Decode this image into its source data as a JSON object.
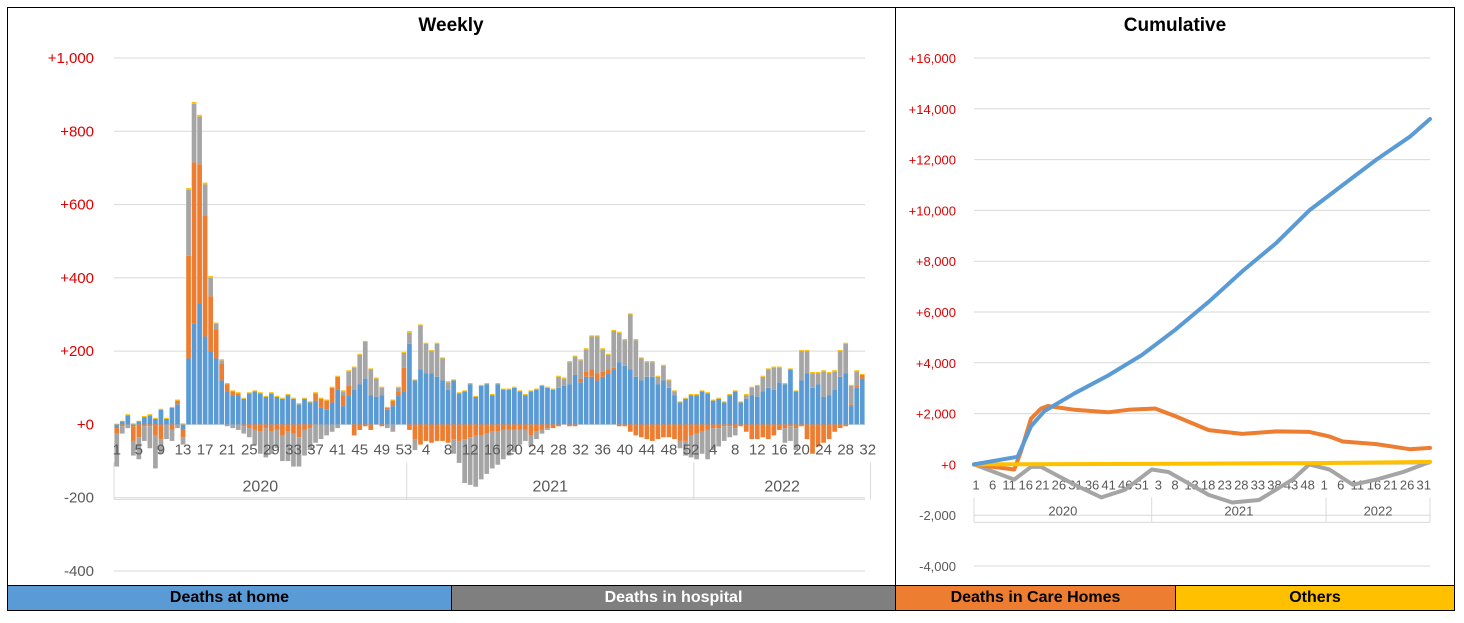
{
  "colors": {
    "home": "#5b9bd5",
    "hospital": "#a5a5a5",
    "care_homes": "#ed7d31",
    "others": "#ffc000",
    "tick_red": "#e00000",
    "grid": "#d9d9d9"
  },
  "legend": [
    {
      "label": "Deaths at home",
      "color": "#5b9bd5",
      "text_color": "#000000"
    },
    {
      "label": "Deaths in hospital",
      "color": "#7f7f7f",
      "text_color": "#ffffff"
    },
    {
      "label": "Deaths in Care Homes",
      "color": "#ed7d31",
      "text_color": "#000000"
    },
    {
      "label": "Others",
      "color": "#ffc000",
      "text_color": "#000000"
    }
  ],
  "chart_data": [
    {
      "type": "bar",
      "stacked": true,
      "title": "Weekly",
      "ylim": [
        -400,
        1000
      ],
      "yticks": [
        {
          "value": 1000,
          "label": "+1,000",
          "red": true
        },
        {
          "value": 800,
          "label": "+800",
          "red": true
        },
        {
          "value": 600,
          "label": "+600",
          "red": true
        },
        {
          "value": 400,
          "label": "+400",
          "red": true
        },
        {
          "value": 200,
          "label": "+200",
          "red": true
        },
        {
          "value": 0,
          "label": "+0",
          "red": true
        },
        {
          "value": -200,
          "label": "-200",
          "red": false
        },
        {
          "value": -400,
          "label": "-400",
          "red": false
        }
      ],
      "x_tick_labels": [
        "1",
        "5",
        "9",
        "13",
        "17",
        "21",
        "25",
        "29",
        "33",
        "37",
        "41",
        "45",
        "49",
        "53",
        "4",
        "8",
        "12",
        "16",
        "20",
        "24",
        "28",
        "32",
        "36",
        "40",
        "44",
        "48",
        "52",
        "4",
        "8",
        "12",
        "16",
        "20",
        "24",
        "28",
        "32"
      ],
      "years": [
        {
          "label": "2020",
          "weeks": 53
        },
        {
          "label": "2021",
          "weeks": 52
        },
        {
          "label": "2022",
          "weeks": 32
        }
      ],
      "series_names": [
        "Deaths at home",
        "Deaths in hospital",
        "Deaths in Care Homes",
        "Others"
      ],
      "home": [
        -10,
        8,
        25,
        -5,
        8,
        20,
        25,
        15,
        40,
        15,
        45,
        55,
        -15,
        180,
        275,
        330,
        240,
        200,
        180,
        120,
        90,
        80,
        80,
        70,
        85,
        90,
        85,
        75,
        85,
        75,
        70,
        80,
        70,
        55,
        70,
        60,
        65,
        45,
        40,
        60,
        95,
        50,
        80,
        95,
        110,
        125,
        80,
        75,
        80,
        40,
        50,
        80,
        90,
        220,
        120,
        150,
        140,
        140,
        130,
        120,
        95,
        120,
        85,
        90,
        110,
        75,
        105,
        110,
        80,
        110,
        95,
        95,
        100,
        90,
        80,
        90,
        95,
        105,
        100,
        95,
        100,
        105,
        110,
        135,
        115,
        130,
        130,
        120,
        130,
        140,
        150,
        170,
        160,
        150,
        130,
        120,
        130,
        130,
        110,
        120,
        100,
        80,
        60,
        70,
        80,
        80,
        90,
        85,
        65,
        70,
        60,
        80,
        90,
        60,
        70,
        80,
        75,
        90,
        100,
        95,
        115,
        110,
        150,
        90,
        120,
        140,
        100,
        110,
        75,
        80,
        95,
        130,
        140,
        50,
        100,
        125
      ],
      "care": [
        -15,
        -5,
        0,
        -40,
        -35,
        -5,
        -5,
        -30,
        -40,
        0,
        -15,
        10,
        -20,
        280,
        440,
        380,
        330,
        150,
        80,
        45,
        20,
        10,
        5,
        -5,
        -10,
        -15,
        -20,
        -10,
        -20,
        -15,
        -30,
        -20,
        -25,
        -35,
        -15,
        -10,
        20,
        25,
        25,
        40,
        35,
        30,
        25,
        -30,
        -15,
        -5,
        -15,
        0,
        -5,
        5,
        15,
        10,
        65,
        -15,
        -40,
        -55,
        -45,
        -50,
        -45,
        -45,
        -50,
        -40,
        -45,
        -40,
        -35,
        -30,
        -30,
        -25,
        -20,
        -20,
        -15,
        -15,
        -15,
        -15,
        -15,
        -30,
        -20,
        -15,
        -10,
        -10,
        -5,
        0,
        -5,
        -5,
        10,
        15,
        20,
        20,
        15,
        10,
        5,
        -5,
        -5,
        -20,
        -30,
        -35,
        -40,
        -45,
        -40,
        -35,
        -35,
        -40,
        -45,
        -45,
        -30,
        -25,
        -20,
        -15,
        -10,
        -10,
        -5,
        -5,
        -10,
        -5,
        -20,
        -40,
        -40,
        -35,
        -40,
        -30,
        -15,
        -10,
        -5,
        -10,
        -5,
        -40,
        -80,
        -60,
        -50,
        -40,
        -20,
        -10,
        -5,
        5,
        5,
        10,
        -5
      ],
      "hospital": [
        -90,
        -20,
        -10,
        -40,
        -60,
        -40,
        -60,
        -90,
        -40,
        -40,
        -30,
        -10,
        -20,
        180,
        160,
        130,
        85,
        50,
        15,
        10,
        -5,
        -10,
        -15,
        -20,
        -25,
        -40,
        -60,
        -80,
        -60,
        -50,
        -70,
        -80,
        -90,
        -80,
        -70,
        -60,
        -50,
        -40,
        -30,
        -20,
        -10,
        10,
        40,
        60,
        80,
        100,
        70,
        50,
        20,
        -10,
        -20,
        10,
        40,
        30,
        -30,
        120,
        80,
        60,
        90,
        60,
        20,
        -40,
        -60,
        -120,
        -130,
        -140,
        -120,
        -110,
        -100,
        -90,
        -80,
        -70,
        -60,
        -40,
        -30,
        -30,
        -20,
        -10,
        -5,
        0,
        30,
        20,
        60,
        50,
        50,
        60,
        90,
        100,
        60,
        40,
        100,
        80,
        70,
        150,
        100,
        60,
        40,
        40,
        20,
        40,
        20,
        10,
        -20,
        -40,
        -60,
        -70,
        -60,
        -80,
        -60,
        -50,
        -40,
        -30,
        -20,
        0,
        10,
        20,
        30,
        40,
        50,
        60,
        40,
        -40,
        -40,
        -60,
        80,
        60,
        40,
        30,
        70,
        60,
        50,
        70,
        80,
        50,
        40
      ],
      "others": [
        2,
        2,
        3,
        3,
        2,
        3,
        3,
        3,
        3,
        3,
        3,
        3,
        3,
        5,
        5,
        5,
        5,
        5,
        3,
        3,
        3,
        3,
        3,
        3,
        3,
        3,
        3,
        3,
        3,
        3,
        3,
        3,
        3,
        3,
        3,
        3,
        3,
        3,
        3,
        3,
        3,
        3,
        3,
        3,
        3,
        3,
        3,
        3,
        3,
        3,
        3,
        3,
        3,
        5,
        3,
        3,
        3,
        3,
        3,
        3,
        3,
        3,
        3,
        3,
        3,
        3,
        3,
        3,
        3,
        3,
        3,
        3,
        3,
        3,
        3,
        3,
        3,
        3,
        3,
        3,
        3,
        3,
        3,
        3,
        3,
        3,
        3,
        3,
        3,
        3,
        3,
        3,
        3,
        3,
        3,
        3,
        3,
        3,
        3,
        3,
        3,
        3,
        3,
        3,
        3,
        3,
        3,
        3,
        3,
        3,
        3,
        3,
        3,
        3,
        3,
        3,
        3,
        3,
        3,
        3,
        3,
        3,
        3,
        3,
        3,
        3,
        3,
        3,
        3,
        3,
        3,
        3,
        3,
        3,
        3,
        3,
        3
      ]
    },
    {
      "type": "line",
      "title": "Cumulative",
      "ylim": [
        -4000,
        16000
      ],
      "yticks": [
        {
          "value": 16000,
          "label": "+16,000",
          "red": true
        },
        {
          "value": 14000,
          "label": "+14,000",
          "red": true
        },
        {
          "value": 12000,
          "label": "+12,000",
          "red": true
        },
        {
          "value": 10000,
          "label": "+10,000",
          "red": true
        },
        {
          "value": 8000,
          "label": "+8,000",
          "red": true
        },
        {
          "value": 6000,
          "label": "+6,000",
          "red": true
        },
        {
          "value": 4000,
          "label": "+4,000",
          "red": true
        },
        {
          "value": 2000,
          "label": "+2,000",
          "red": true
        },
        {
          "value": 0,
          "label": "+0",
          "red": true
        },
        {
          "value": -2000,
          "label": "-2,000",
          "red": false
        },
        {
          "value": -4000,
          "label": "-4,000",
          "red": false
        }
      ],
      "x_tick_labels": [
        "1",
        "6",
        "11",
        "16",
        "21",
        "26",
        "31",
        "36",
        "41",
        "46",
        "51",
        "3",
        "8",
        "13",
        "18",
        "23",
        "28",
        "33",
        "38",
        "43",
        "48",
        "1",
        "6",
        "11",
        "16",
        "21",
        "26",
        "31"
      ],
      "years": [
        {
          "label": "2020",
          "weeks": 53
        },
        {
          "label": "2021",
          "weeks": 52
        },
        {
          "label": "2022",
          "weeks": 32
        }
      ],
      "series": [
        {
          "name": "Deaths at home",
          "points": [
            [
              0,
              0
            ],
            [
              13,
              300
            ],
            [
              17,
              1500
            ],
            [
              21,
              2100
            ],
            [
              30,
              2800
            ],
            [
              40,
              3500
            ],
            [
              50,
              4300
            ],
            [
              53,
              4600
            ],
            [
              60,
              5300
            ],
            [
              70,
              6400
            ],
            [
              80,
              7600
            ],
            [
              90,
              8700
            ],
            [
              100,
              10000
            ],
            [
              110,
              11000
            ],
            [
              120,
              12000
            ],
            [
              130,
              12900
            ],
            [
              136,
              13600
            ]
          ]
        },
        {
          "name": "Deaths in Care Homes",
          "points": [
            [
              0,
              0
            ],
            [
              12,
              -200
            ],
            [
              14,
              500
            ],
            [
              17,
              1800
            ],
            [
              20,
              2200
            ],
            [
              22,
              2300
            ],
            [
              30,
              2150
            ],
            [
              40,
              2050
            ],
            [
              46,
              2150
            ],
            [
              54,
              2200
            ],
            [
              60,
              1900
            ],
            [
              70,
              1350
            ],
            [
              80,
              1200
            ],
            [
              90,
              1300
            ],
            [
              100,
              1280
            ],
            [
              106,
              1100
            ],
            [
              110,
              900
            ],
            [
              120,
              800
            ],
            [
              130,
              600
            ],
            [
              136,
              650
            ]
          ]
        },
        {
          "name": "Deaths in hospital",
          "points": [
            [
              0,
              0
            ],
            [
              12,
              -600
            ],
            [
              17,
              -100
            ],
            [
              20,
              -100
            ],
            [
              30,
              -800
            ],
            [
              38,
              -1300
            ],
            [
              45,
              -1000
            ],
            [
              53,
              -200
            ],
            [
              58,
              -300
            ],
            [
              70,
              -1200
            ],
            [
              77,
              -1500
            ],
            [
              85,
              -1400
            ],
            [
              95,
              -600
            ],
            [
              100,
              0
            ],
            [
              106,
              -200
            ],
            [
              113,
              -800
            ],
            [
              120,
              -600
            ],
            [
              128,
              -300
            ],
            [
              136,
              100
            ]
          ]
        },
        {
          "name": "Others",
          "points": [
            [
              0,
              0
            ],
            [
              53,
              20
            ],
            [
              100,
              50
            ],
            [
              136,
              100
            ]
          ]
        }
      ]
    }
  ]
}
